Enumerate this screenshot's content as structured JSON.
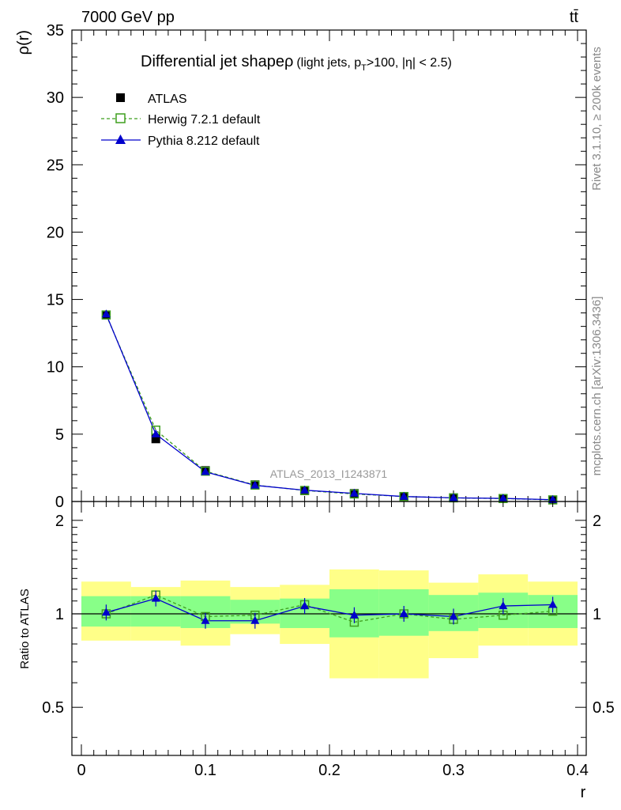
{
  "header": {
    "energy_label": "7000 GeV pp",
    "process_label": "tt̄",
    "rivet_label": "Rivet 3.1.10, ≥ 200k events",
    "source_label": "mcplots.cern.ch [arXiv:1306.3436]",
    "analysis_label": "ATLAS_2013_I1243871"
  },
  "colors": {
    "atlas": "#000000",
    "herwig": "#3f9f1f",
    "pythia": "#0000cc",
    "band_outer": "#ffff88",
    "band_inner": "#88ff88"
  },
  "chart_data": [
    {
      "type": "line",
      "title_main": "Differential jet shapeρ",
      "title_sub_pre": "(light jets, p",
      "title_sub_sub": "T",
      "title_sub_post": ">100, |η| < 2.5)",
      "ylabel": "ρ(r)",
      "xlim": [
        0,
        0.4
      ],
      "ylim": [
        0,
        35
      ],
      "yticks": [
        "0",
        "5",
        "10",
        "15",
        "20",
        "25",
        "30",
        "35"
      ],
      "x": [
        0.02,
        0.06,
        0.1,
        0.14,
        0.18,
        0.22,
        0.26,
        0.3,
        0.34,
        0.38
      ],
      "series": [
        {
          "name": "ATLAS",
          "style": "data",
          "values": [
            13.85,
            4.65,
            2.3,
            1.25,
            0.8,
            0.6,
            0.37,
            0.28,
            0.22,
            0.12
          ]
        },
        {
          "name": "Herwig 7.2.1 default",
          "style": "dashed-open-square",
          "values": [
            13.85,
            5.3,
            2.25,
            1.22,
            0.82,
            0.56,
            0.37,
            0.27,
            0.22,
            0.12
          ]
        },
        {
          "name": "Pythia 8.212 default",
          "style": "solid-triangle",
          "values": [
            13.9,
            5.0,
            2.2,
            1.2,
            0.84,
            0.6,
            0.37,
            0.27,
            0.23,
            0.13
          ]
        }
      ],
      "legend_position": "top-left"
    },
    {
      "type": "line",
      "ylabel": "Ratio to ATLAS",
      "xlabel": "r",
      "xlim": [
        0,
        0.4
      ],
      "ylim": [
        0.35,
        2.3
      ],
      "yticks": [
        "0.5",
        "1",
        "2"
      ],
      "xticks": [
        "0",
        "0.1",
        "0.2",
        "0.3",
        "0.4"
      ],
      "x": [
        0.02,
        0.06,
        0.1,
        0.14,
        0.18,
        0.22,
        0.26,
        0.3,
        0.34,
        0.38
      ],
      "bands": {
        "outer_low": [
          0.82,
          0.82,
          0.79,
          0.86,
          0.8,
          0.62,
          0.62,
          0.72,
          0.79,
          0.79
        ],
        "outer_high": [
          1.27,
          1.22,
          1.28,
          1.22,
          1.24,
          1.39,
          1.38,
          1.26,
          1.34,
          1.27
        ],
        "inner_low": [
          0.91,
          0.91,
          0.9,
          0.93,
          0.9,
          0.84,
          0.85,
          0.88,
          0.9,
          0.9
        ],
        "inner_high": [
          1.14,
          1.14,
          1.14,
          1.11,
          1.12,
          1.2,
          1.2,
          1.15,
          1.17,
          1.15
        ]
      },
      "series": [
        {
          "name": "Herwig 7.2.1 default",
          "values": [
            1.0,
            1.15,
            0.98,
            0.99,
            1.07,
            0.94,
            1.0,
            0.96,
            0.99,
            1.02
          ]
        },
        {
          "name": "Pythia 8.212 default",
          "values": [
            1.01,
            1.12,
            0.95,
            0.95,
            1.06,
            0.99,
            1.0,
            0.98,
            1.06,
            1.07
          ]
        }
      ]
    }
  ]
}
